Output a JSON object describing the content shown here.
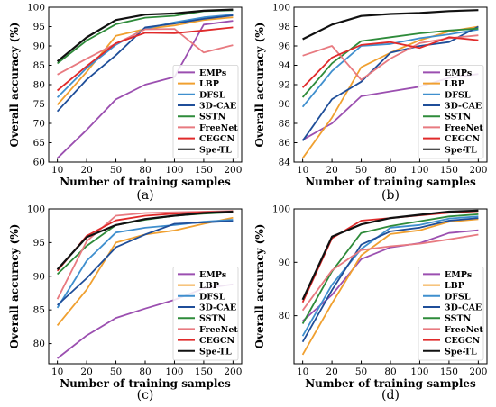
{
  "chart_data": [
    {
      "type": "line",
      "panel_label": "(a)",
      "xlabel": "Number of training samples",
      "ylabel": "Overall accuracy (%)",
      "categories": [
        "10",
        "20",
        "50",
        "80",
        "100",
        "150",
        "200"
      ],
      "ylim": [
        60,
        100
      ],
      "yticks": [
        60,
        65,
        70,
        75,
        80,
        85,
        90,
        95,
        100
      ],
      "legend_position": "bottom-right",
      "grid": false,
      "series": [
        {
          "name": "EMPs",
          "color": "#9b4fb0",
          "values": [
            61.0,
            68.3,
            76.2,
            80.0,
            82.0,
            95.5,
            96.5
          ]
        },
        {
          "name": "LBP",
          "color": "#f0a030",
          "values": [
            74.8,
            83.3,
            92.6,
            94.4,
            95.3,
            96.7,
            97.4
          ]
        },
        {
          "name": "DFSL",
          "color": "#3f8fce",
          "values": [
            76.7,
            84.3,
            90.3,
            94.5,
            96.1,
            97.4,
            98.1
          ]
        },
        {
          "name": "3D-CAE",
          "color": "#1f4e99",
          "values": [
            73.1,
            81.3,
            87.6,
            94.8,
            95.8,
            97.0,
            97.9
          ]
        },
        {
          "name": "SSTN",
          "color": "#2e8b3a",
          "values": [
            85.5,
            91.4,
            95.6,
            97.3,
            97.8,
            99.0,
            99.2
          ]
        },
        {
          "name": "FreeNet",
          "color": "#e87a80",
          "values": [
            82.6,
            86.7,
            90.6,
            94.3,
            94.4,
            88.3,
            90.2
          ]
        },
        {
          "name": "CEGCN",
          "color": "#e02a2a",
          "values": [
            78.5,
            84.8,
            90.7,
            93.4,
            93.3,
            94.0,
            94.8
          ]
        },
        {
          "name": "Spe-TL",
          "color": "#111111",
          "values": [
            86.0,
            92.2,
            96.7,
            98.1,
            98.4,
            99.1,
            99.4
          ]
        }
      ]
    },
    {
      "type": "line",
      "panel_label": "(b)",
      "xlabel": "Number of training samples",
      "ylabel": "Overall accuracy (%)",
      "categories": [
        "10",
        "20",
        "50",
        "80",
        "100",
        "150",
        "200"
      ],
      "ylim": [
        84,
        100
      ],
      "yticks": [
        84,
        86,
        88,
        90,
        92,
        94,
        96,
        98,
        100
      ],
      "legend_position": "bottom-right",
      "grid": false,
      "series": [
        {
          "name": "EMPs",
          "color": "#9b4fb0",
          "values": [
            86.3,
            88.0,
            90.8,
            91.3,
            91.8,
            92.7,
            93.1
          ]
        },
        {
          "name": "LBP",
          "color": "#f0a030",
          "values": [
            84.4,
            88.6,
            93.8,
            95.3,
            96.6,
            97.5,
            98.0
          ]
        },
        {
          "name": "DFSL",
          "color": "#3f8fce",
          "values": [
            89.7,
            93.4,
            96.0,
            96.2,
            96.8,
            97.2,
            97.7
          ]
        },
        {
          "name": "3D-CAE",
          "color": "#1f4e99",
          "values": [
            86.2,
            90.5,
            92.3,
            95.3,
            96.0,
            96.4,
            98.0
          ]
        },
        {
          "name": "SSTN",
          "color": "#2e8b3a",
          "values": [
            90.7,
            94.2,
            96.5,
            96.9,
            97.3,
            97.6,
            97.8
          ]
        },
        {
          "name": "FreeNet",
          "color": "#e87a80",
          "values": [
            95.0,
            96.0,
            92.5,
            94.7,
            96.3,
            96.8,
            97.1
          ]
        },
        {
          "name": "CEGCN",
          "color": "#e02a2a",
          "values": [
            91.7,
            94.8,
            96.1,
            96.4,
            95.8,
            96.9,
            96.6
          ]
        },
        {
          "name": "Spe-TL",
          "color": "#111111",
          "values": [
            96.7,
            98.2,
            99.1,
            99.3,
            99.4,
            99.6,
            99.7
          ]
        }
      ]
    },
    {
      "type": "line",
      "panel_label": "(c)",
      "xlabel": "Number of training samples",
      "ylabel": "Overall accuracy (%)",
      "categories": [
        "10",
        "20",
        "50",
        "80",
        "100",
        "150",
        "200"
      ],
      "ylim": [
        77,
        100
      ],
      "yticks": [
        80,
        85,
        90,
        95,
        100
      ],
      "legend_position": "bottom-right",
      "grid": false,
      "series": [
        {
          "name": "EMPs",
          "color": "#9b4fb0",
          "values": [
            77.8,
            81.2,
            83.8,
            85.2,
            86.5,
            88.2,
            88.8
          ]
        },
        {
          "name": "LBP",
          "color": "#f0a030",
          "values": [
            82.7,
            88.0,
            95.0,
            96.2,
            96.8,
            97.8,
            98.7
          ]
        },
        {
          "name": "DFSL",
          "color": "#3f8fce",
          "values": [
            85.3,
            92.3,
            96.5,
            97.2,
            97.6,
            98.1,
            98.4
          ]
        },
        {
          "name": "3D-CAE",
          "color": "#1f4e99",
          "values": [
            85.7,
            89.7,
            94.3,
            96.2,
            97.8,
            98.0,
            98.2
          ]
        },
        {
          "name": "SSTN",
          "color": "#2e8b3a",
          "values": [
            90.3,
            94.5,
            97.6,
            98.4,
            99.0,
            99.3,
            99.5
          ]
        },
        {
          "name": "FreeNet",
          "color": "#e87a80",
          "values": [
            86.6,
            95.2,
            99.0,
            99.4,
            99.5,
            99.6,
            99.7
          ]
        },
        {
          "name": "CEGCN",
          "color": "#e02a2a",
          "values": [
            90.8,
            96.0,
            98.3,
            99.0,
            99.3,
            99.5,
            99.6
          ]
        },
        {
          "name": "Spe-TL",
          "color": "#111111",
          "values": [
            91.0,
            95.8,
            97.6,
            98.5,
            99.0,
            99.4,
            99.6
          ]
        }
      ]
    },
    {
      "type": "line",
      "panel_label": "(d)",
      "xlabel": "Number of training samples",
      "ylabel": "Overall accuracy (%)",
      "categories": [
        "10",
        "20",
        "50",
        "80",
        "100",
        "150",
        "200"
      ],
      "ylim": [
        71,
        100
      ],
      "yticks": [
        80,
        90,
        100
      ],
      "legend_position": "bottom-right",
      "grid": false,
      "series": [
        {
          "name": "EMPs",
          "color": "#9b4fb0",
          "values": [
            79.0,
            83.9,
            90.6,
            92.8,
            93.6,
            95.5,
            96.0
          ]
        },
        {
          "name": "LBP",
          "color": "#f0a030",
          "values": [
            72.7,
            82.3,
            91.3,
            95.3,
            96.0,
            97.6,
            98.1
          ]
        },
        {
          "name": "DFSL",
          "color": "#3f8fce",
          "values": [
            76.2,
            85.8,
            92.5,
            96.5,
            97.0,
            98.2,
            98.6
          ]
        },
        {
          "name": "3D-CAE",
          "color": "#1f4e99",
          "values": [
            75.1,
            84.8,
            93.3,
            95.8,
            96.5,
            97.8,
            98.3
          ]
        },
        {
          "name": "SSTN",
          "color": "#2e8b3a",
          "values": [
            78.5,
            88.3,
            95.5,
            96.8,
            97.7,
            98.6,
            99.0
          ]
        },
        {
          "name": "FreeNet",
          "color": "#e87a80",
          "values": [
            81.0,
            88.5,
            92.3,
            93.0,
            93.5,
            94.3,
            95.2
          ]
        },
        {
          "name": "CEGCN",
          "color": "#e02a2a",
          "values": [
            82.5,
            94.5,
            97.8,
            98.3,
            98.8,
            99.3,
            99.6
          ]
        },
        {
          "name": "Spe-TL",
          "color": "#111111",
          "values": [
            83.0,
            94.8,
            97.1,
            98.3,
            98.9,
            99.5,
            99.7
          ]
        }
      ]
    }
  ]
}
